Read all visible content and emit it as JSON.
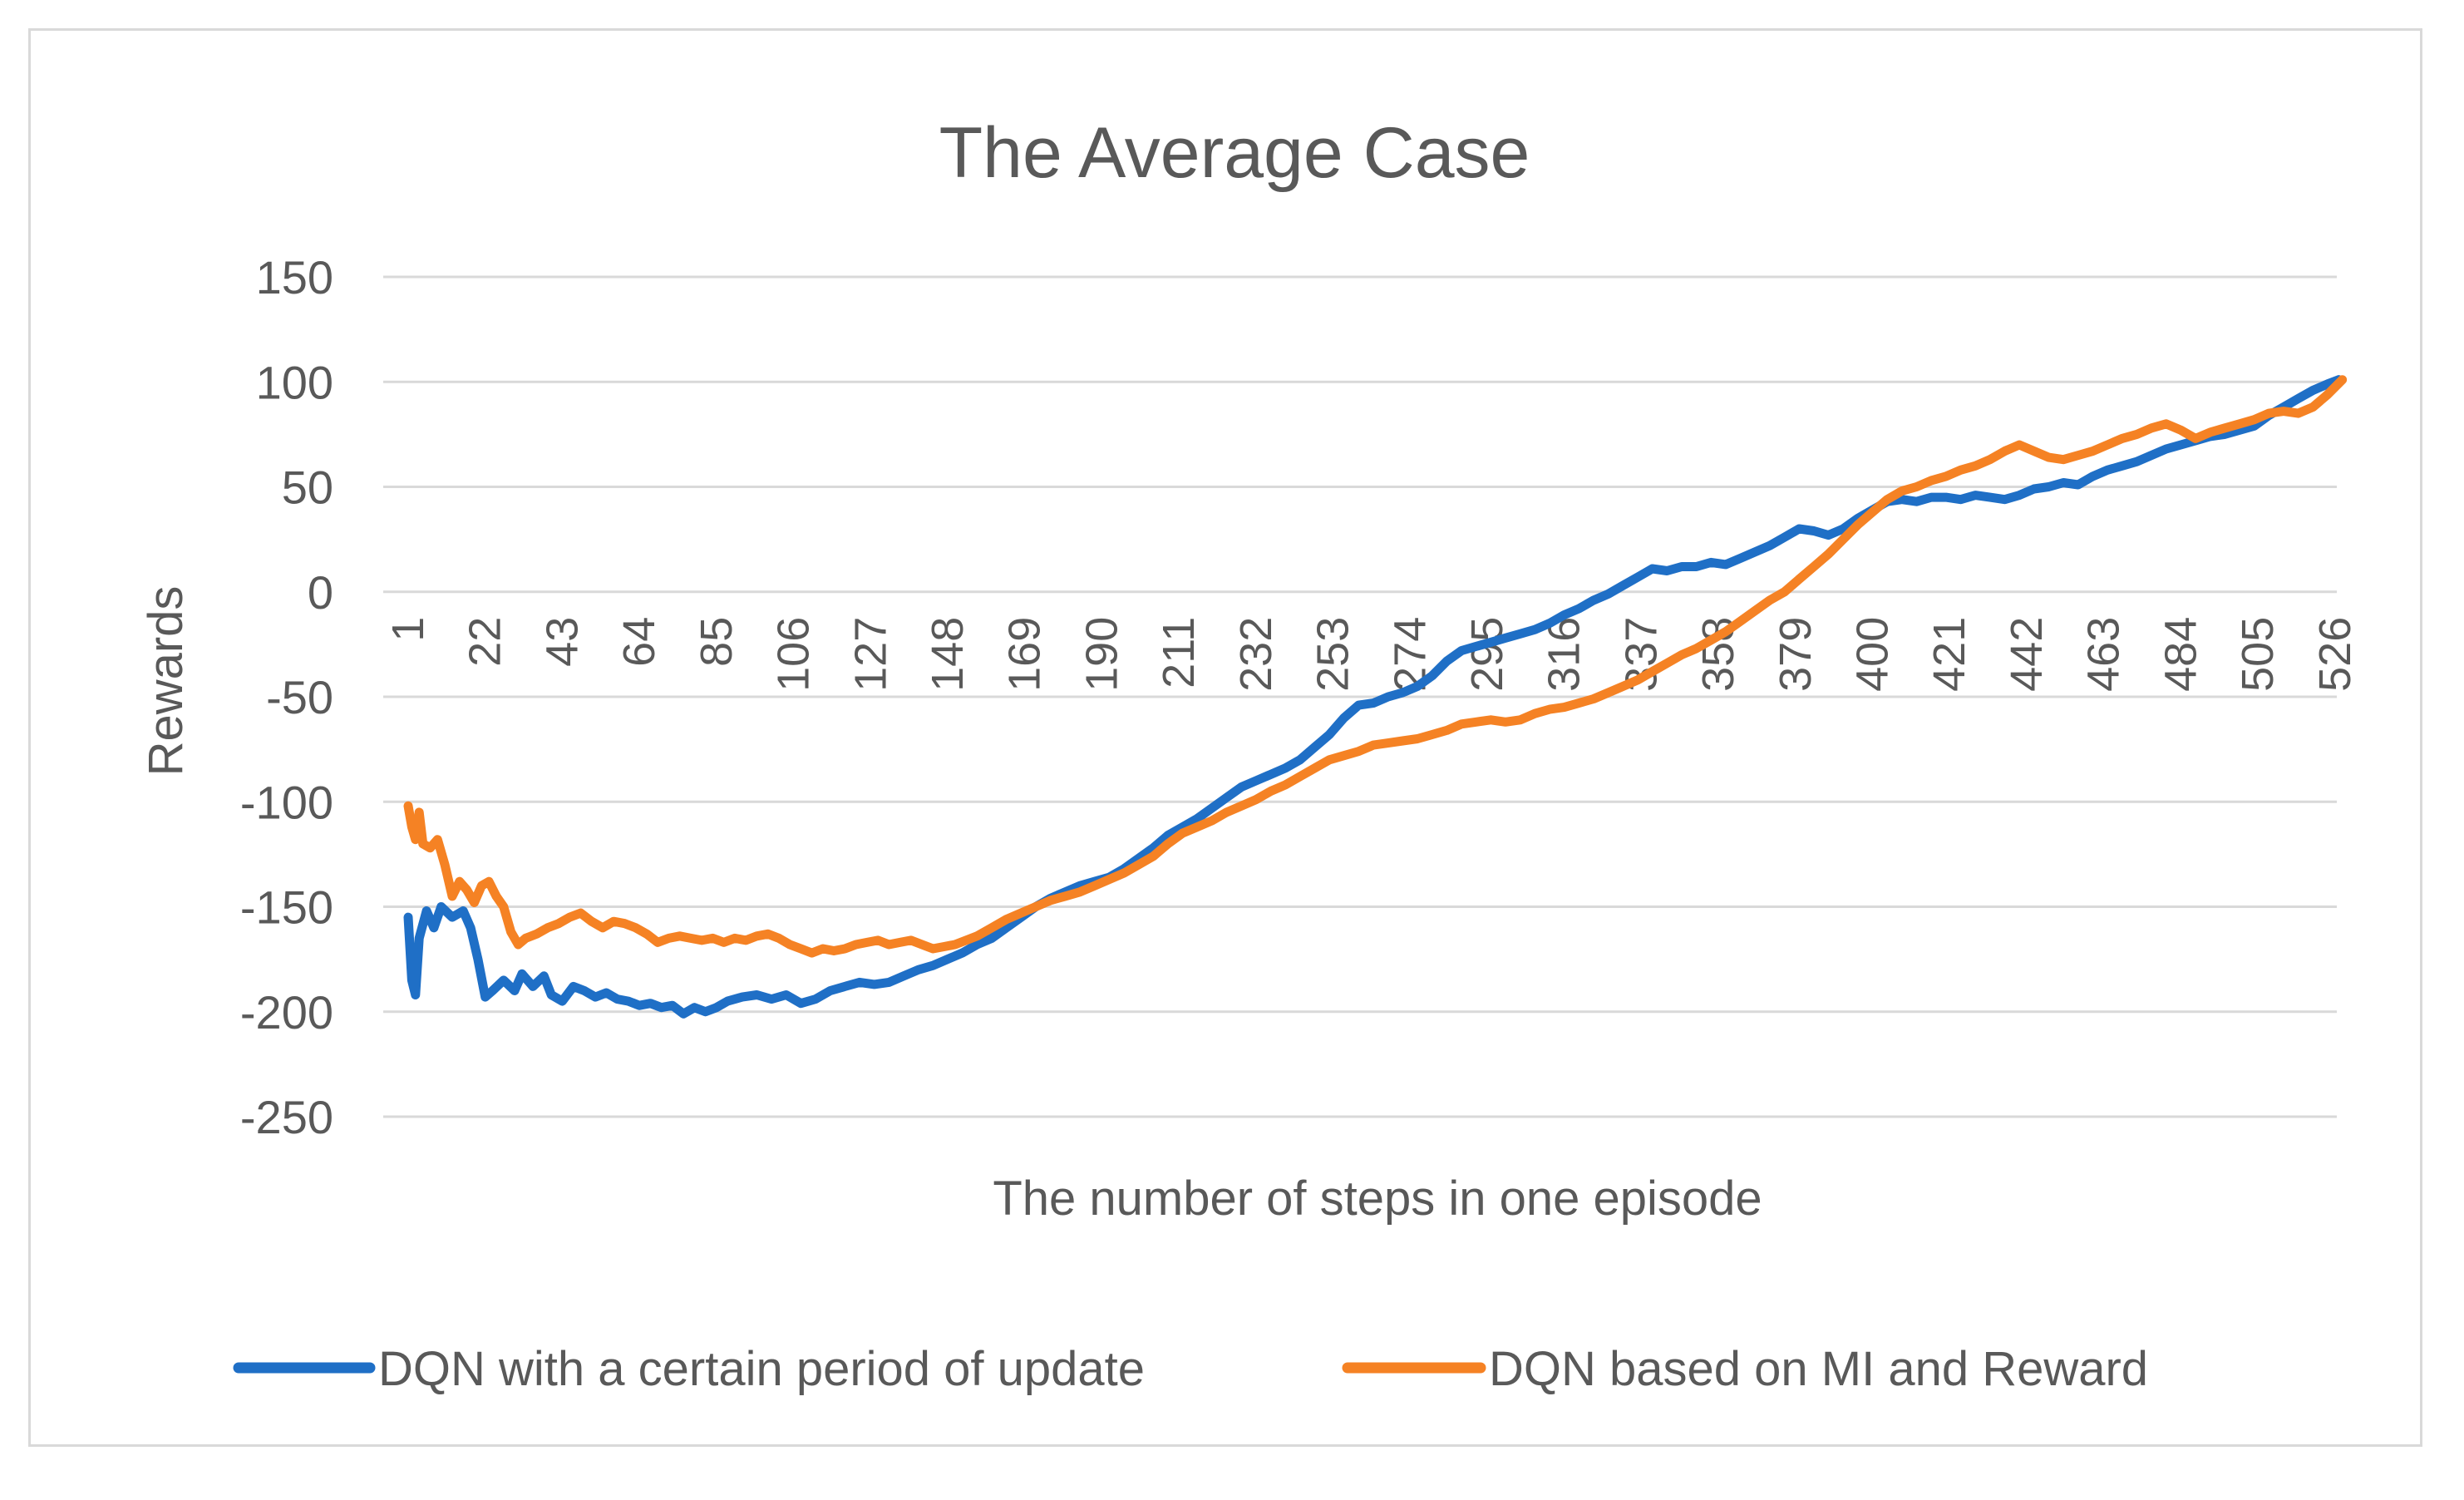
{
  "chart_data": {
    "type": "line",
    "title": "The Average Case",
    "xlabel": "The number of steps in one episode",
    "ylabel": "Rewards",
    "ylim": [
      -250,
      150
    ],
    "yticks": [
      150,
      100,
      50,
      0,
      -50,
      -100,
      -150,
      -200,
      -250
    ],
    "xlim": [
      1,
      526
    ],
    "xticks": [
      "1",
      "22",
      "43",
      "64",
      "85",
      "106",
      "127",
      "148",
      "169",
      "190",
      "211",
      "232",
      "253",
      "274",
      "295",
      "316",
      "337",
      "358",
      "379",
      "400",
      "421",
      "442",
      "463",
      "484",
      "505",
      "526"
    ],
    "grid": true,
    "legend_position": "bottom",
    "series": [
      {
        "name": "DQN with a certain period of update",
        "color": "#1f6fc6",
        "points": [
          [
            1,
            -155
          ],
          [
            2,
            -185
          ],
          [
            3,
            -192
          ],
          [
            4,
            -165
          ],
          [
            6,
            -152
          ],
          [
            8,
            -160
          ],
          [
            10,
            -150
          ],
          [
            13,
            -155
          ],
          [
            16,
            -152
          ],
          [
            18,
            -160
          ],
          [
            20,
            -175
          ],
          [
            22,
            -193
          ],
          [
            24,
            -190
          ],
          [
            27,
            -185
          ],
          [
            30,
            -190
          ],
          [
            32,
            -182
          ],
          [
            35,
            -188
          ],
          [
            38,
            -183
          ],
          [
            40,
            -192
          ],
          [
            43,
            -195
          ],
          [
            46,
            -188
          ],
          [
            49,
            -190
          ],
          [
            52,
            -193
          ],
          [
            55,
            -191
          ],
          [
            58,
            -194
          ],
          [
            61,
            -195
          ],
          [
            64,
            -197
          ],
          [
            67,
            -196
          ],
          [
            70,
            -198
          ],
          [
            73,
            -197
          ],
          [
            76,
            -201
          ],
          [
            79,
            -198
          ],
          [
            82,
            -200
          ],
          [
            85,
            -198
          ],
          [
            88,
            -195
          ],
          [
            92,
            -193
          ],
          [
            96,
            -192
          ],
          [
            100,
            -194
          ],
          [
            104,
            -192
          ],
          [
            108,
            -196
          ],
          [
            112,
            -194
          ],
          [
            116,
            -190
          ],
          [
            120,
            -188
          ],
          [
            124,
            -186
          ],
          [
            128,
            -187
          ],
          [
            132,
            -186
          ],
          [
            136,
            -183
          ],
          [
            140,
            -180
          ],
          [
            144,
            -178
          ],
          [
            148,
            -175
          ],
          [
            152,
            -172
          ],
          [
            156,
            -168
          ],
          [
            160,
            -165
          ],
          [
            164,
            -160
          ],
          [
            168,
            -155
          ],
          [
            172,
            -150
          ],
          [
            176,
            -146
          ],
          [
            180,
            -143
          ],
          [
            184,
            -140
          ],
          [
            188,
            -138
          ],
          [
            192,
            -136
          ],
          [
            196,
            -132
          ],
          [
            200,
            -127
          ],
          [
            204,
            -122
          ],
          [
            208,
            -116
          ],
          [
            212,
            -112
          ],
          [
            216,
            -108
          ],
          [
            220,
            -103
          ],
          [
            224,
            -98
          ],
          [
            228,
            -93
          ],
          [
            232,
            -90
          ],
          [
            236,
            -87
          ],
          [
            240,
            -84
          ],
          [
            244,
            -80
          ],
          [
            248,
            -74
          ],
          [
            252,
            -68
          ],
          [
            256,
            -60
          ],
          [
            260,
            -54
          ],
          [
            264,
            -53
          ],
          [
            268,
            -50
          ],
          [
            272,
            -48
          ],
          [
            276,
            -45
          ],
          [
            280,
            -40
          ],
          [
            284,
            -33
          ],
          [
            288,
            -28
          ],
          [
            292,
            -26
          ],
          [
            296,
            -24
          ],
          [
            300,
            -22
          ],
          [
            304,
            -20
          ],
          [
            308,
            -18
          ],
          [
            312,
            -15
          ],
          [
            316,
            -11
          ],
          [
            320,
            -8
          ],
          [
            324,
            -4
          ],
          [
            328,
            -1
          ],
          [
            332,
            3
          ],
          [
            336,
            7
          ],
          [
            340,
            11
          ],
          [
            344,
            10
          ],
          [
            348,
            12
          ],
          [
            352,
            12
          ],
          [
            356,
            14
          ],
          [
            360,
            13
          ],
          [
            364,
            16
          ],
          [
            368,
            19
          ],
          [
            372,
            22
          ],
          [
            376,
            26
          ],
          [
            380,
            30
          ],
          [
            384,
            29
          ],
          [
            388,
            27
          ],
          [
            392,
            30
          ],
          [
            396,
            35
          ],
          [
            400,
            39
          ],
          [
            404,
            43
          ],
          [
            408,
            44
          ],
          [
            412,
            43
          ],
          [
            416,
            45
          ],
          [
            420,
            45
          ],
          [
            424,
            44
          ],
          [
            428,
            46
          ],
          [
            432,
            45
          ],
          [
            436,
            44
          ],
          [
            440,
            46
          ],
          [
            444,
            49
          ],
          [
            448,
            50
          ],
          [
            452,
            52
          ],
          [
            456,
            51
          ],
          [
            460,
            55
          ],
          [
            464,
            58
          ],
          [
            468,
            60
          ],
          [
            472,
            62
          ],
          [
            476,
            65
          ],
          [
            480,
            68
          ],
          [
            484,
            70
          ],
          [
            488,
            72
          ],
          [
            492,
            74
          ],
          [
            496,
            75
          ],
          [
            500,
            77
          ],
          [
            504,
            79
          ],
          [
            508,
            84
          ],
          [
            512,
            88
          ],
          [
            516,
            92
          ],
          [
            520,
            96
          ],
          [
            524,
            99
          ],
          [
            527,
            101
          ]
        ]
      },
      {
        "name": "DQN based on MI and Reward",
        "color": "#f58224",
        "points": [
          [
            1,
            -102
          ],
          [
            2,
            -112
          ],
          [
            3,
            -118
          ],
          [
            4,
            -105
          ],
          [
            5,
            -120
          ],
          [
            7,
            -122
          ],
          [
            9,
            -118
          ],
          [
            11,
            -130
          ],
          [
            13,
            -145
          ],
          [
            15,
            -138
          ],
          [
            17,
            -142
          ],
          [
            19,
            -148
          ],
          [
            21,
            -140
          ],
          [
            23,
            -138
          ],
          [
            25,
            -145
          ],
          [
            27,
            -150
          ],
          [
            29,
            -162
          ],
          [
            31,
            -168
          ],
          [
            33,
            -165
          ],
          [
            36,
            -163
          ],
          [
            39,
            -160
          ],
          [
            42,
            -158
          ],
          [
            45,
            -155
          ],
          [
            48,
            -153
          ],
          [
            51,
            -157
          ],
          [
            54,
            -160
          ],
          [
            57,
            -157
          ],
          [
            60,
            -158
          ],
          [
            63,
            -160
          ],
          [
            66,
            -163
          ],
          [
            69,
            -167
          ],
          [
            72,
            -165
          ],
          [
            75,
            -164
          ],
          [
            78,
            -165
          ],
          [
            81,
            -166
          ],
          [
            84,
            -165
          ],
          [
            87,
            -167
          ],
          [
            90,
            -165
          ],
          [
            93,
            -166
          ],
          [
            96,
            -164
          ],
          [
            99,
            -163
          ],
          [
            102,
            -165
          ],
          [
            105,
            -168
          ],
          [
            108,
            -170
          ],
          [
            111,
            -172
          ],
          [
            114,
            -170
          ],
          [
            117,
            -171
          ],
          [
            120,
            -170
          ],
          [
            123,
            -168
          ],
          [
            126,
            -167
          ],
          [
            129,
            -166
          ],
          [
            132,
            -168
          ],
          [
            135,
            -167
          ],
          [
            138,
            -166
          ],
          [
            141,
            -168
          ],
          [
            144,
            -170
          ],
          [
            147,
            -169
          ],
          [
            150,
            -168
          ],
          [
            153,
            -166
          ],
          [
            156,
            -164
          ],
          [
            160,
            -160
          ],
          [
            164,
            -156
          ],
          [
            168,
            -153
          ],
          [
            172,
            -150
          ],
          [
            176,
            -147
          ],
          [
            180,
            -145
          ],
          [
            184,
            -143
          ],
          [
            188,
            -140
          ],
          [
            192,
            -137
          ],
          [
            196,
            -134
          ],
          [
            200,
            -130
          ],
          [
            204,
            -126
          ],
          [
            208,
            -120
          ],
          [
            212,
            -115
          ],
          [
            216,
            -112
          ],
          [
            220,
            -109
          ],
          [
            224,
            -105
          ],
          [
            228,
            -102
          ],
          [
            232,
            -99
          ],
          [
            236,
            -95
          ],
          [
            240,
            -92
          ],
          [
            244,
            -88
          ],
          [
            248,
            -84
          ],
          [
            252,
            -80
          ],
          [
            256,
            -78
          ],
          [
            260,
            -76
          ],
          [
            264,
            -73
          ],
          [
            268,
            -72
          ],
          [
            272,
            -71
          ],
          [
            276,
            -70
          ],
          [
            280,
            -68
          ],
          [
            284,
            -66
          ],
          [
            288,
            -63
          ],
          [
            292,
            -62
          ],
          [
            296,
            -61
          ],
          [
            300,
            -62
          ],
          [
            304,
            -61
          ],
          [
            308,
            -58
          ],
          [
            312,
            -56
          ],
          [
            316,
            -55
          ],
          [
            320,
            -53
          ],
          [
            324,
            -51
          ],
          [
            328,
            -48
          ],
          [
            332,
            -45
          ],
          [
            336,
            -42
          ],
          [
            340,
            -38
          ],
          [
            344,
            -34
          ],
          [
            348,
            -30
          ],
          [
            352,
            -27
          ],
          [
            356,
            -23
          ],
          [
            360,
            -19
          ],
          [
            364,
            -14
          ],
          [
            368,
            -9
          ],
          [
            372,
            -4
          ],
          [
            376,
            0
          ],
          [
            380,
            6
          ],
          [
            384,
            12
          ],
          [
            388,
            18
          ],
          [
            392,
            25
          ],
          [
            396,
            32
          ],
          [
            400,
            38
          ],
          [
            404,
            44
          ],
          [
            408,
            48
          ],
          [
            412,
            50
          ],
          [
            416,
            53
          ],
          [
            420,
            55
          ],
          [
            424,
            58
          ],
          [
            428,
            60
          ],
          [
            432,
            63
          ],
          [
            436,
            67
          ],
          [
            440,
            70
          ],
          [
            444,
            67
          ],
          [
            448,
            64
          ],
          [
            452,
            63
          ],
          [
            456,
            65
          ],
          [
            460,
            67
          ],
          [
            464,
            70
          ],
          [
            468,
            73
          ],
          [
            472,
            75
          ],
          [
            476,
            78
          ],
          [
            480,
            80
          ],
          [
            484,
            77
          ],
          [
            488,
            73
          ],
          [
            492,
            76
          ],
          [
            496,
            78
          ],
          [
            500,
            80
          ],
          [
            504,
            82
          ],
          [
            508,
            85
          ],
          [
            512,
            86
          ],
          [
            516,
            85
          ],
          [
            520,
            88
          ],
          [
            524,
            94
          ],
          [
            528,
            101
          ]
        ]
      }
    ]
  }
}
